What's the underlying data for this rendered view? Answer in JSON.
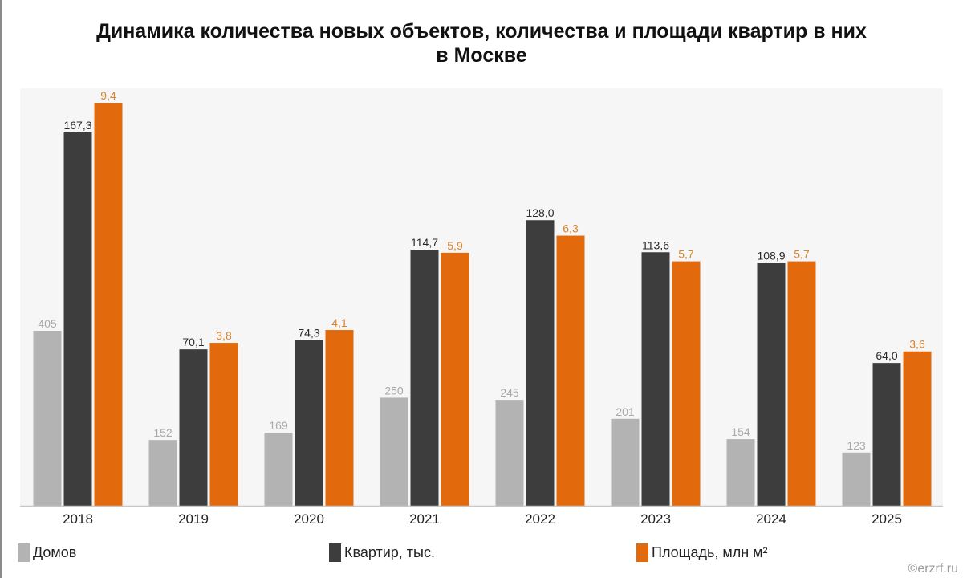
{
  "chart_data": {
    "type": "bar",
    "title": "Динамика количества новых объектов, количества и площади квартир в них",
    "title_line2": "в Москве",
    "categories": [
      "2018",
      "2019",
      "2020",
      "2021",
      "2022",
      "2023",
      "2024",
      "2025"
    ],
    "series": [
      {
        "name": "Домов",
        "color": "#b3b3b3",
        "label_color": "#a8a8a8",
        "values": [
          405,
          152,
          169,
          250,
          245,
          201,
          154,
          123
        ],
        "labels": [
          "405",
          "152",
          "169",
          "250",
          "245",
          "201",
          "154",
          "123"
        ]
      },
      {
        "name": "Квартир, тыс.",
        "color": "#3d3d3d",
        "label_color": "#2a2a2a",
        "values": [
          167.3,
          70.1,
          74.3,
          114.7,
          128.0,
          113.6,
          108.9,
          64.0
        ],
        "labels": [
          "167,3",
          "70,1",
          "74,3",
          "114,7",
          "128,0",
          "113,6",
          "108,9",
          "64,0"
        ]
      },
      {
        "name": "Площадь, млн м²",
        "color": "#e2690c",
        "label_color": "#d9852f",
        "values": [
          9.4,
          3.8,
          4.1,
          5.9,
          6.3,
          5.7,
          5.7,
          3.6
        ],
        "labels": [
          "9,4",
          "3,8",
          "4,1",
          "5,9",
          "6,3",
          "5,7",
          "5,7",
          "3,6"
        ]
      }
    ],
    "independent_scale_per_series": true,
    "grid": false,
    "legend_position": "bottom",
    "background": "#f6f6f6"
  },
  "watermark": "©erzrf.ru"
}
